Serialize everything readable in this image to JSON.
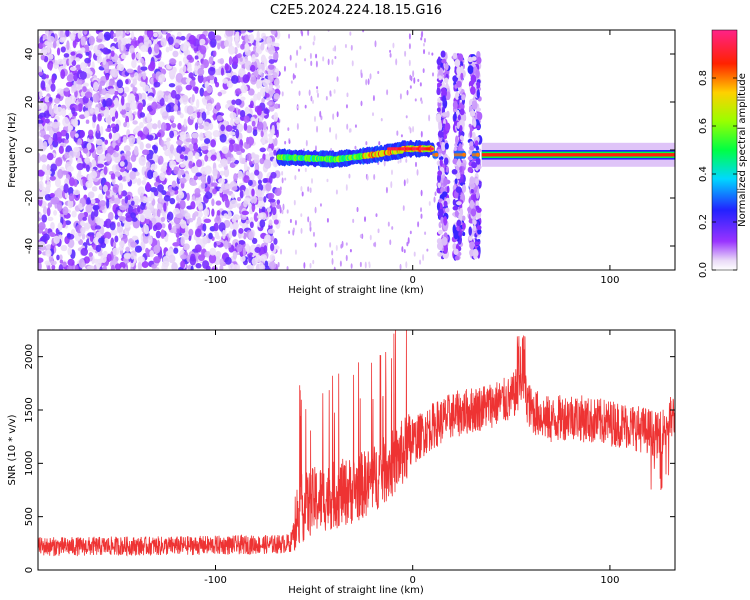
{
  "figure": {
    "title": "C2E5.2024.224.18.15.G16"
  },
  "chart_data": [
    {
      "type": "heatmap",
      "xlabel": "Height of straight line (km)",
      "ylabel": "Frequency (Hz)",
      "xlim": [
        -190,
        133
      ],
      "ylim": [
        -50,
        50
      ],
      "x_ticks": [
        -100,
        0,
        100
      ],
      "y_ticks": [
        -40,
        -20,
        0,
        20,
        40
      ],
      "colorbar": {
        "label": "Normalized spectral amplitude",
        "range": [
          0,
          1
        ],
        "ticks": [
          "0.0",
          "0.2",
          "0.4",
          "0.6",
          "0.8"
        ],
        "colormap": "rainbow (white-violet-blue-cyan-green-yellow-red-magenta)"
      },
      "regions": [
        {
          "x_range": [
            -190,
            -68
          ],
          "description": "broadband noise",
          "frequency_range": [
            -50,
            50
          ],
          "amplitude": "low"
        },
        {
          "x_range": [
            -68,
            10
          ],
          "description": "signal band",
          "frequency_center": [
            -2,
            -4,
            -2,
            0
          ],
          "amplitude": "high"
        },
        {
          "x_range": [
            12,
            35
          ],
          "description": "gapped bursts",
          "frequency_range": [
            -45,
            40
          ],
          "amplitude": "mixed"
        },
        {
          "x_range": [
            35,
            133
          ],
          "description": "steady line",
          "frequency_center": -2,
          "amplitude": "high"
        }
      ],
      "grid": false,
      "legend": "colorbar-right"
    },
    {
      "type": "line",
      "xlabel": "Height of straight line (km)",
      "ylabel": "SNR (10 * v/v)",
      "xlim": [
        -190,
        133
      ],
      "ylim": [
        0,
        2250
      ],
      "x_ticks": [
        -100,
        0,
        100
      ],
      "y_ticks": [
        0,
        500,
        1000,
        1500,
        2000
      ],
      "color": "#ee3333",
      "series": [
        {
          "x": [
            -190,
            -170,
            -150,
            -130,
            -110,
            -90,
            -70,
            -62,
            -58,
            -50,
            -40,
            -30,
            -20,
            -10,
            0,
            10,
            20,
            30,
            40,
            50,
            55,
            60,
            70,
            80,
            90,
            100,
            110,
            120,
            125,
            130,
            133
          ],
          "values": [
            220,
            220,
            225,
            225,
            230,
            235,
            240,
            250,
            550,
            650,
            700,
            750,
            850,
            1000,
            1200,
            1350,
            1450,
            1500,
            1550,
            1600,
            1750,
            1500,
            1400,
            1450,
            1400,
            1380,
            1350,
            1300,
            1250,
            1400,
            1450
          ]
        }
      ],
      "grid": false
    }
  ]
}
